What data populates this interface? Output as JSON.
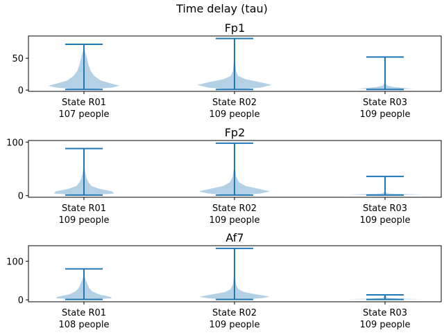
{
  "figure": {
    "title": "Time delay (tau)"
  },
  "colors": {
    "violin_fill": "#a6c8e0",
    "violin_line": "#1f77b4",
    "axis": "#000000"
  },
  "chart_data": [
    {
      "type": "violin",
      "title": "Fp1",
      "categories": [
        "State R01\n107 people",
        "State R02\n109 people",
        "State R03\n109 people"
      ],
      "category_labels": [
        [
          "State R01",
          "107 people"
        ],
        [
          "State R02",
          "109 people"
        ],
        [
          "State R03",
          "109 people"
        ]
      ],
      "ylim": [
        -2,
        85
      ],
      "yticks": [
        0,
        50
      ],
      "violins": [
        {
          "min": 1,
          "max": 72,
          "profile": [
            [
              1,
              0.1
            ],
            [
              4,
              0.75
            ],
            [
              7,
              0.95
            ],
            [
              10,
              0.75
            ],
            [
              15,
              0.45
            ],
            [
              22,
              0.28
            ],
            [
              30,
              0.18
            ],
            [
              40,
              0.12
            ],
            [
              50,
              0.08
            ],
            [
              58,
              0.04
            ],
            [
              65,
              0.01
            ],
            [
              72,
              0.0
            ]
          ]
        },
        {
          "min": 1,
          "max": 81,
          "profile": [
            [
              1,
              0.1
            ],
            [
              4,
              0.7
            ],
            [
              8,
              1.0
            ],
            [
              12,
              0.72
            ],
            [
              17,
              0.3
            ],
            [
              22,
              0.1
            ],
            [
              30,
              0.04
            ],
            [
              45,
              0.02
            ],
            [
              60,
              0.01
            ],
            [
              81,
              0.0
            ]
          ]
        },
        {
          "min": 1,
          "max": 52,
          "profile": [
            [
              1,
              0.25
            ],
            [
              2,
              0.75
            ],
            [
              3,
              0.55
            ],
            [
              5,
              0.22
            ],
            [
              7,
              0.06
            ],
            [
              10,
              0.02
            ],
            [
              20,
              0.01
            ],
            [
              52,
              0.0
            ]
          ]
        }
      ]
    },
    {
      "type": "violin",
      "title": "Fp2",
      "categories": [
        "State R01\n109 people",
        "State R02\n109 people",
        "State R03\n109 people"
      ],
      "category_labels": [
        [
          "State R01",
          "109 people"
        ],
        [
          "State R02",
          "109 people"
        ],
        [
          "State R03",
          "109 people"
        ]
      ],
      "ylim": [
        -3,
        103
      ],
      "yticks": [
        0,
        100
      ],
      "violins": [
        {
          "min": 1,
          "max": 88,
          "profile": [
            [
              1,
              0.1
            ],
            [
              4,
              0.8
            ],
            [
              8,
              0.75
            ],
            [
              13,
              0.4
            ],
            [
              18,
              0.2
            ],
            [
              25,
              0.12
            ],
            [
              32,
              0.07
            ],
            [
              45,
              0.03
            ],
            [
              60,
              0.01
            ],
            [
              88,
              0.0
            ]
          ]
        },
        {
          "min": 1,
          "max": 98,
          "profile": [
            [
              1,
              0.1
            ],
            [
              4,
              0.7
            ],
            [
              8,
              0.95
            ],
            [
              12,
              0.7
            ],
            [
              18,
              0.3
            ],
            [
              25,
              0.12
            ],
            [
              35,
              0.05
            ],
            [
              45,
              0.03
            ],
            [
              55,
              0.01
            ],
            [
              98,
              0.0
            ]
          ]
        },
        {
          "min": 1,
          "max": 36,
          "profile": [
            [
              1,
              0.3
            ],
            [
              2,
              1.0
            ],
            [
              3,
              0.5
            ],
            [
              4,
              0.1
            ],
            [
              6,
              0.02
            ],
            [
              36,
              0.0
            ]
          ]
        }
      ]
    },
    {
      "type": "violin",
      "title": "Af7",
      "categories": [
        "State R01\n108 people",
        "State R02\n109 people",
        "State R03\n109 people"
      ],
      "category_labels": [
        [
          "State R01",
          "108 people"
        ],
        [
          "State R02",
          "109 people"
        ],
        [
          "State R03",
          "109 people"
        ]
      ],
      "ylim": [
        -5,
        140
      ],
      "yticks": [
        0,
        100
      ],
      "violins": [
        {
          "min": 1,
          "max": 80,
          "profile": [
            [
              1,
              0.1
            ],
            [
              4,
              0.75
            ],
            [
              8,
              0.7
            ],
            [
              14,
              0.4
            ],
            [
              22,
              0.22
            ],
            [
              30,
              0.14
            ],
            [
              40,
              0.1
            ],
            [
              50,
              0.05
            ],
            [
              60,
              0.02
            ],
            [
              80,
              0.0
            ]
          ]
        },
        {
          "min": 1,
          "max": 133,
          "profile": [
            [
              1,
              0.1
            ],
            [
              4,
              0.7
            ],
            [
              8,
              0.95
            ],
            [
              14,
              0.6
            ],
            [
              20,
              0.25
            ],
            [
              28,
              0.1
            ],
            [
              40,
              0.04
            ],
            [
              60,
              0.02
            ],
            [
              90,
              0.01
            ],
            [
              133,
              0.0
            ]
          ]
        },
        {
          "min": 1,
          "max": 13,
          "profile": [
            [
              1,
              0.3
            ],
            [
              2,
              1.0
            ],
            [
              3,
              0.4
            ],
            [
              5,
              0.06
            ],
            [
              13,
              0.0
            ]
          ]
        }
      ]
    }
  ]
}
